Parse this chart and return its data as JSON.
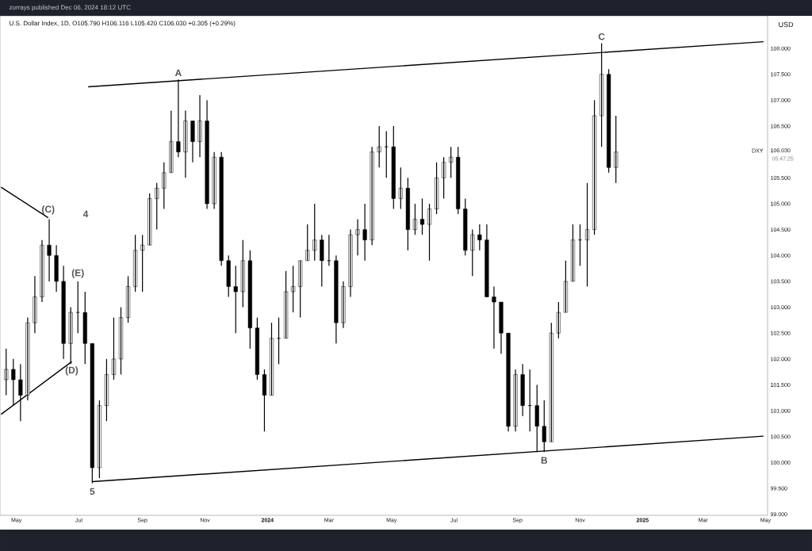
{
  "chart_data": {
    "type": "candlestick",
    "title": "U.S. Dollar Index, 1D, O105.790 H106.116 L105.420 C106.030 +0.305 (+0.29%)",
    "subtitle": "zorrays published Dec 06, 2024 18:12 UTC",
    "ylabel": "USD",
    "color": "#000000",
    "x": [
      "2023-04-21",
      "2023-04-28",
      "2023-05-05",
      "2023-05-12",
      "2023-05-19",
      "2023-05-26",
      "2023-06-02",
      "2023-06-09",
      "2023-06-16",
      "2023-06-23",
      "2023-06-30",
      "2023-07-07",
      "2023-07-14",
      "2023-07-21",
      "2023-07-28",
      "2023-08-04",
      "2023-08-11",
      "2023-08-18",
      "2023-08-25",
      "2023-09-01",
      "2023-09-08",
      "2023-09-15",
      "2023-09-22",
      "2023-09-29",
      "2023-10-06",
      "2023-10-13",
      "2023-10-20",
      "2023-10-27",
      "2023-11-03",
      "2023-11-10",
      "2023-11-17",
      "2023-11-24",
      "2023-12-01",
      "2023-12-08",
      "2023-12-15",
      "2023-12-22",
      "2023-12-29",
      "2024-01-05",
      "2024-01-12",
      "2024-01-19",
      "2024-01-26",
      "2024-02-02",
      "2024-02-09",
      "2024-02-16",
      "2024-02-23",
      "2024-03-01",
      "2024-03-08",
      "2024-03-15",
      "2024-03-22",
      "2024-03-29",
      "2024-04-05",
      "2024-04-12",
      "2024-04-19",
      "2024-04-26",
      "2024-05-03",
      "2024-05-10",
      "2024-05-17",
      "2024-05-24",
      "2024-05-31",
      "2024-06-07",
      "2024-06-14",
      "2024-06-21",
      "2024-06-28",
      "2024-07-05",
      "2024-07-12",
      "2024-07-19",
      "2024-07-26",
      "2024-08-02",
      "2024-08-09",
      "2024-08-16",
      "2024-08-23",
      "2024-08-30",
      "2024-09-06",
      "2024-09-13",
      "2024-09-20",
      "2024-09-27",
      "2024-10-04",
      "2024-10-11",
      "2024-10-18",
      "2024-10-25",
      "2024-11-01",
      "2024-11-08",
      "2024-11-15",
      "2024-11-22",
      "2024-11-29",
      "2024-12-06"
    ],
    "ohlc": [
      [
        101.6,
        102.2,
        101.3,
        101.8
      ],
      [
        101.8,
        102.0,
        101.1,
        101.6
      ],
      [
        101.6,
        101.9,
        100.8,
        101.3
      ],
      [
        101.3,
        102.8,
        101.2,
        102.7
      ],
      [
        102.7,
        103.6,
        102.5,
        103.2
      ],
      [
        103.2,
        104.3,
        103.1,
        104.2
      ],
      [
        104.2,
        104.7,
        103.5,
        104.0
      ],
      [
        104.0,
        104.2,
        103.3,
        103.5
      ],
      [
        103.5,
        103.8,
        102.0,
        102.3
      ],
      [
        102.3,
        103.0,
        101.9,
        102.9
      ],
      [
        102.9,
        103.5,
        102.5,
        102.9
      ],
      [
        102.9,
        103.3,
        101.9,
        102.3
      ],
      [
        102.3,
        102.3,
        99.6,
        99.9
      ],
      [
        99.9,
        101.2,
        99.7,
        101.1
      ],
      [
        101.1,
        102.0,
        100.8,
        101.7
      ],
      [
        101.7,
        102.8,
        101.6,
        102.0
      ],
      [
        102.0,
        103.0,
        101.7,
        102.8
      ],
      [
        102.8,
        103.6,
        102.7,
        103.4
      ],
      [
        103.4,
        104.4,
        103.3,
        104.1
      ],
      [
        104.1,
        104.4,
        103.3,
        104.2
      ],
      [
        104.2,
        105.2,
        104.2,
        105.1
      ],
      [
        105.1,
        105.4,
        104.5,
        105.3
      ],
      [
        105.3,
        105.8,
        104.9,
        105.6
      ],
      [
        105.6,
        106.8,
        105.6,
        106.2
      ],
      [
        106.2,
        107.4,
        105.9,
        106.0
      ],
      [
        106.0,
        106.8,
        105.5,
        106.6
      ],
      [
        106.6,
        106.6,
        105.8,
        106.2
      ],
      [
        106.2,
        107.1,
        105.9,
        106.6
      ],
      [
        106.6,
        107.0,
        104.9,
        105.0
      ],
      [
        105.0,
        106.0,
        104.9,
        105.9
      ],
      [
        105.9,
        106.0,
        103.8,
        103.9
      ],
      [
        103.9,
        104.0,
        103.2,
        103.4
      ],
      [
        103.4,
        103.8,
        102.5,
        103.3
      ],
      [
        103.3,
        104.3,
        103.0,
        103.9
      ],
      [
        103.9,
        104.1,
        102.2,
        102.6
      ],
      [
        102.6,
        102.8,
        101.6,
        101.7
      ],
      [
        101.7,
        101.8,
        100.6,
        101.3
      ],
      [
        101.3,
        102.7,
        101.3,
        102.4
      ],
      [
        102.4,
        102.8,
        101.9,
        102.4
      ],
      [
        102.4,
        103.7,
        102.4,
        103.3
      ],
      [
        103.3,
        103.8,
        102.9,
        103.4
      ],
      [
        103.4,
        103.9,
        102.8,
        103.9
      ],
      [
        103.9,
        104.6,
        103.9,
        104.1
      ],
      [
        104.1,
        105.0,
        103.9,
        104.3
      ],
      [
        104.3,
        104.4,
        103.4,
        103.9
      ],
      [
        103.9,
        104.4,
        103.8,
        103.9
      ],
      [
        103.9,
        104.0,
        102.3,
        102.7
      ],
      [
        102.7,
        103.5,
        102.6,
        103.4
      ],
      [
        103.4,
        104.5,
        103.2,
        104.4
      ],
      [
        104.4,
        104.7,
        104.0,
        104.5
      ],
      [
        104.5,
        105.0,
        103.9,
        104.3
      ],
      [
        104.3,
        106.1,
        104.2,
        106.0
      ],
      [
        106.0,
        106.5,
        105.7,
        106.1
      ],
      [
        106.1,
        106.4,
        105.5,
        106.1
      ],
      [
        106.1,
        106.5,
        104.9,
        105.1
      ],
      [
        105.1,
        105.7,
        104.9,
        105.3
      ],
      [
        105.3,
        105.5,
        104.1,
        104.5
      ],
      [
        104.5,
        105.0,
        104.4,
        104.7
      ],
      [
        104.7,
        105.1,
        104.4,
        104.6
      ],
      [
        104.6,
        105.0,
        103.9,
        104.9
      ],
      [
        104.9,
        105.8,
        104.8,
        105.5
      ],
      [
        105.5,
        105.9,
        105.1,
        105.8
      ],
      [
        105.8,
        106.1,
        105.5,
        105.9
      ],
      [
        105.9,
        106.1,
        104.8,
        104.9
      ],
      [
        104.9,
        105.1,
        104.0,
        104.1
      ],
      [
        104.1,
        104.5,
        103.6,
        104.4
      ],
      [
        104.4,
        104.6,
        104.1,
        104.3
      ],
      [
        104.3,
        104.6,
        103.2,
        103.2
      ],
      [
        103.2,
        103.4,
        102.2,
        103.1
      ],
      [
        103.1,
        103.1,
        102.1,
        102.5
      ],
      [
        102.5,
        102.5,
        100.6,
        100.7
      ],
      [
        100.7,
        101.8,
        100.6,
        101.7
      ],
      [
        101.7,
        101.9,
        100.9,
        101.1
      ],
      [
        101.1,
        101.8,
        100.6,
        101.1
      ],
      [
        101.1,
        101.5,
        100.2,
        100.7
      ],
      [
        100.7,
        101.2,
        100.2,
        100.4
      ],
      [
        100.4,
        102.7,
        100.4,
        102.5
      ],
      [
        102.5,
        103.1,
        102.4,
        102.9
      ],
      [
        102.9,
        103.9,
        102.9,
        103.5
      ],
      [
        103.5,
        104.6,
        103.5,
        104.3
      ],
      [
        104.3,
        104.6,
        103.8,
        104.3
      ],
      [
        104.3,
        105.4,
        103.4,
        104.5
      ],
      [
        104.5,
        107.0,
        104.4,
        106.7
      ],
      [
        106.7,
        108.1,
        106.1,
        107.5
      ],
      [
        107.5,
        107.6,
        105.6,
        105.7
      ],
      [
        105.7,
        106.7,
        105.4,
        106.0
      ]
    ],
    "series": [
      {
        "type": "line",
        "x": [
          "2023-07-10",
          "2025-04-29"
        ],
        "values": [
          107.26,
          108.13
        ],
        "color": "#000000"
      },
      {
        "type": "line",
        "x": [
          "2023-07-14",
          "2025-04-29"
        ],
        "values": [
          99.63,
          100.51
        ],
        "color": "#000000"
      },
      {
        "type": "line",
        "x": [
          "2023-04-16",
          "2023-06-01"
        ],
        "values": [
          105.32,
          104.73
        ],
        "color": "#000000"
      },
      {
        "type": "line",
        "x": [
          "2023-04-16",
          "2023-06-24"
        ],
        "values": [
          100.93,
          101.95
        ],
        "color": "#000000"
      }
    ],
    "xlim": [
      "2023-04-15",
      "2025-05-03"
    ],
    "ylim": [
      98.98,
      108.63
    ],
    "xticks": [
      {
        "value": "2023-05-01",
        "label": "May"
      },
      {
        "value": "2023-07-01",
        "label": "Jul"
      },
      {
        "value": "2023-09-01",
        "label": "Sep"
      },
      {
        "value": "2023-11-01",
        "label": "Nov"
      },
      {
        "value": "2024-01-01",
        "label": "2024"
      },
      {
        "value": "2024-03-01",
        "label": "Mar"
      },
      {
        "value": "2024-05-01",
        "label": "May"
      },
      {
        "value": "2024-07-01",
        "label": "Jul"
      },
      {
        "value": "2024-09-01",
        "label": "Sep"
      },
      {
        "value": "2024-11-01",
        "label": "Nov"
      },
      {
        "value": "2025-01-01",
        "label": "2025"
      },
      {
        "value": "2025-03-01",
        "label": "Mar"
      },
      {
        "value": "2025-05-01",
        "label": "May"
      }
    ],
    "yticks": [
      {
        "value": 99.0,
        "label": "99.000"
      },
      {
        "value": 99.5,
        "label": "99.500"
      },
      {
        "value": 100.0,
        "label": "100.000"
      },
      {
        "value": 100.5,
        "label": "100.500"
      },
      {
        "value": 101.0,
        "label": "101.000"
      },
      {
        "value": 101.5,
        "label": "101.500"
      },
      {
        "value": 102.0,
        "label": "102.000"
      },
      {
        "value": 102.5,
        "label": "102.500"
      },
      {
        "value": 103.0,
        "label": "103.000"
      },
      {
        "value": 103.5,
        "label": "103.500"
      },
      {
        "value": 104.0,
        "label": "104.000"
      },
      {
        "value": 104.5,
        "label": "104.500"
      },
      {
        "value": 105.0,
        "label": "105.000"
      },
      {
        "value": 105.5,
        "label": "105.500"
      },
      {
        "value": 106.03,
        "label": "106.030"
      },
      {
        "value": 106.5,
        "label": "106.500"
      },
      {
        "value": 107.0,
        "label": "107.000"
      },
      {
        "value": 107.5,
        "label": "107.500"
      },
      {
        "value": 108.0,
        "label": "108.000"
      }
    ],
    "grid": false,
    "annotations": [
      {
        "text": "A",
        "x": "2023-10-06",
        "y": 107.4
      },
      {
        "text": "B",
        "x": "2024-09-27",
        "y": 100.2
      },
      {
        "text": "C",
        "x": "2024-11-22",
        "y": 108.1
      },
      "4",
      {
        "text": "5",
        "x": "2023-07-14",
        "y": 99.6
      },
      {
        "text": "(C)",
        "x": "2023-06-01",
        "y": 104.73
      },
      {
        "text": "(E)",
        "x": "2023-06-30",
        "y": 103.5
      },
      {
        "text": "(D)",
        "x": "2023-06-24",
        "y": 101.95
      },
      "DXY",
      "05:47:25"
    ]
  }
}
